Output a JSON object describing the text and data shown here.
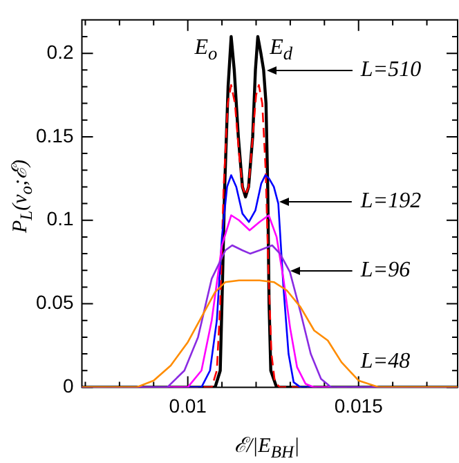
{
  "chart_data": {
    "type": "line",
    "xlabel": "ℰ/|E$_{BH}$|",
    "ylabel": "P$_{L}$(v$_{o}$;ℰ)",
    "xlim": [
      0.0069,
      0.0179
    ],
    "ylim": [
      0,
      0.22
    ],
    "xticks": [
      {
        "value": 0.007,
        "label": null
      },
      {
        "value": 0.008,
        "label": null
      },
      {
        "value": 0.009,
        "label": null
      },
      0.01,
      {
        "value": 0.011,
        "label": null
      },
      {
        "value": 0.012,
        "label": null
      },
      {
        "value": 0.013,
        "label": null
      },
      {
        "value": 0.014,
        "label": null
      },
      0.015,
      {
        "value": 0.016,
        "label": null
      },
      {
        "value": 0.017,
        "label": null
      }
    ],
    "yticks": [
      0,
      {
        "value": 0.01,
        "label": null
      },
      {
        "value": 0.02,
        "label": null
      },
      {
        "value": 0.03,
        "label": null
      },
      {
        "value": 0.04,
        "label": null
      },
      0.05,
      {
        "value": 0.06,
        "label": null
      },
      {
        "value": 0.07,
        "label": null
      },
      {
        "value": 0.08,
        "label": null
      },
      {
        "value": 0.09,
        "label": null
      },
      0.1,
      {
        "value": 0.11,
        "label": null
      },
      {
        "value": 0.12,
        "label": null
      },
      {
        "value": 0.13,
        "label": null
      },
      {
        "value": 0.14,
        "label": null
      },
      0.15,
      {
        "value": 0.16,
        "label": null
      },
      {
        "value": 0.17,
        "label": null
      },
      {
        "value": 0.18,
        "label": null
      },
      {
        "value": 0.19,
        "label": null
      },
      0.2,
      {
        "value": 0.21,
        "label": null
      }
    ],
    "grid": false,
    "legend": false,
    "marker": "none",
    "series": [
      {
        "color": "#ff8c00",
        "line_style": "solid",
        "x": [
          0.0069,
          0.0085,
          0.009,
          0.0095,
          0.01,
          0.0104,
          0.0108,
          0.0111,
          0.0115,
          0.0121,
          0.01252,
          0.0129,
          0.0133,
          0.0137,
          0.0141,
          0.0145,
          0.015,
          0.0156,
          0.0179
        ],
        "values": [
          0,
          0,
          0.004,
          0.013,
          0.027,
          0.042,
          0.057,
          0.063,
          0.064,
          0.064,
          0.063,
          0.058,
          0.048,
          0.034,
          0.028,
          0.015,
          0.004,
          0,
          0
        ]
      },
      {
        "color": "#8a2be2",
        "line_style": "solid",
        "x": [
          0.0069,
          0.0094,
          0.0099,
          0.0103,
          0.0107,
          0.0111,
          0.0113,
          0.0116,
          0.01183,
          0.0121,
          0.01247,
          0.0127,
          0.01299,
          0.0133,
          0.0136,
          0.0139,
          0.0142,
          0.0179
        ],
        "values": [
          0,
          0,
          0.01,
          0.03,
          0.065,
          0.082,
          0.085,
          0.082,
          0.08,
          0.082,
          0.085,
          0.08,
          0.069,
          0.045,
          0.02,
          0.005,
          0,
          0
        ]
      },
      {
        "color": "#ff00ff",
        "line_style": "solid",
        "x": [
          0.0069,
          0.01,
          0.0104,
          0.0107,
          0.011,
          0.01127,
          0.0115,
          0.01181,
          0.0121,
          0.01237,
          0.0126,
          0.0128,
          0.013,
          0.0132,
          0.01345,
          0.0137,
          0.0179
        ],
        "values": [
          0,
          0,
          0.01,
          0.04,
          0.085,
          0.103,
          0.1,
          0.094,
          0.099,
          0.103,
          0.09,
          0.065,
          0.035,
          0.012,
          0.002,
          0,
          0
        ]
      },
      {
        "color": "#0000ff",
        "line_style": "solid",
        "x": [
          0.0069,
          0.0104,
          0.01065,
          0.01085,
          0.011,
          0.01115,
          0.01127,
          0.01142,
          0.0116,
          0.01179,
          0.01198,
          0.01215,
          0.01227,
          0.01238,
          0.01252,
          0.01265,
          0.0128,
          0.01295,
          0.0131,
          0.0133,
          0.0179
        ],
        "values": [
          0,
          0,
          0.01,
          0.04,
          0.09,
          0.12,
          0.127,
          0.12,
          0.104,
          0.099,
          0.106,
          0.122,
          0.127,
          0.125,
          0.12,
          0.11,
          0.06,
          0.02,
          0.003,
          0,
          0
        ]
      },
      {
        "color": "#ff0000",
        "line_style": "dashed",
        "x": [
          0.0069,
          0.0107,
          0.01085,
          0.01095,
          0.01105,
          0.01117,
          0.01127,
          0.01138,
          0.0115,
          0.0116,
          0.01169,
          0.01178,
          0.0119,
          0.012,
          0.01208,
          0.01218,
          0.01228,
          0.01236,
          0.01245,
          0.01255,
          0.0127,
          0.0179
        ],
        "values": [
          0,
          0,
          0.01,
          0.05,
          0.12,
          0.17,
          0.181,
          0.17,
          0.14,
          0.12,
          0.115,
          0.12,
          0.15,
          0.175,
          0.181,
          0.17,
          0.13,
          0.07,
          0.02,
          0.003,
          0,
          0
        ]
      },
      {
        "color": "#000000",
        "line_style": "solid",
        "x": [
          0.0069,
          0.0108,
          0.01095,
          0.011,
          0.01108,
          0.01118,
          0.01127,
          0.01136,
          0.01148,
          0.0116,
          0.01169,
          0.01178,
          0.0119,
          0.01198,
          0.01205,
          0.01214,
          0.01222,
          0.01229,
          0.01234,
          0.01238,
          0.01243,
          0.0126,
          0.0179
        ],
        "values": [
          0,
          0,
          0.01,
          0.05,
          0.12,
          0.18,
          0.21,
          0.19,
          0.15,
          0.12,
          0.114,
          0.12,
          0.15,
          0.19,
          0.21,
          0.2,
          0.19,
          0.17,
          0.12,
          0.05,
          0.01,
          0,
          0
        ]
      }
    ],
    "annotations": [
      "E$_{o}$",
      "E$_{d}$",
      "L=510",
      "L=192",
      "L=96",
      "L=48"
    ]
  }
}
